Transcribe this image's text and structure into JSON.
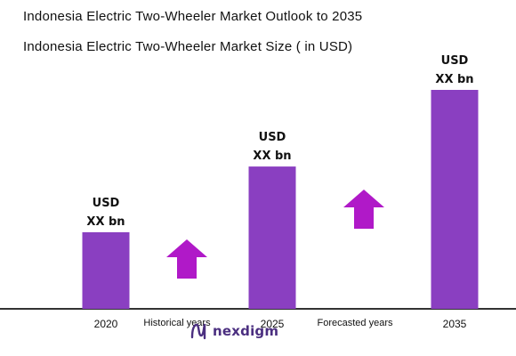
{
  "chart_data": {
    "type": "bar",
    "title": "Indonesia Electric Two-Wheeler Market Outlook to 2035",
    "subtitle": "Indonesia Electric Two-Wheeler Market Size ( in USD)",
    "categories": [
      "2020",
      "2025",
      "2035"
    ],
    "value_labels": [
      [
        "USD",
        "XX bn"
      ],
      [
        "USD",
        "XX bn"
      ],
      [
        "USD",
        "XX bn"
      ]
    ],
    "relative_heights": [
      0.35,
      0.65,
      1.0
    ],
    "bar_color": "#8a3fc1",
    "arrow_color": "#b019c8",
    "axis_color": "#333333",
    "period_labels": [
      "Historical years",
      "Forecasted years"
    ]
  },
  "brand": {
    "name": "nexdigm",
    "color": "#4b2f80",
    "icon": "nexdigm-logo-icon"
  }
}
